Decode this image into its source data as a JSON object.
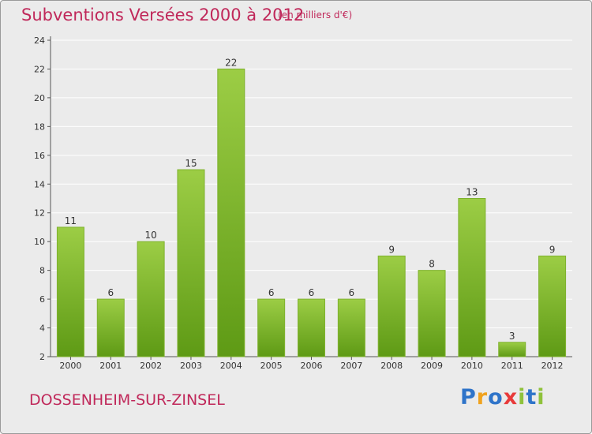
{
  "title": "Subventions Versées 2000 à 2012",
  "subtitle": "(en milliers d'€)",
  "commune": "DOSSENHEIM-SUR-ZINSEL",
  "logo": {
    "letters": [
      "P",
      "r",
      "o",
      "x",
      "i",
      "t",
      "i"
    ],
    "colors": [
      "#2f74c9",
      "#f0a21e",
      "#2f74c9",
      "#e83a3a",
      "#8fc23b",
      "#2f74c9",
      "#8fc23b"
    ]
  },
  "colors": {
    "bar_light": "#9ccd45",
    "bar_dark": "#5e9a15",
    "title": "#c0285a"
  },
  "chart_data": {
    "type": "bar",
    "categories": [
      "2000",
      "2001",
      "2002",
      "2003",
      "2004",
      "2005",
      "2006",
      "2007",
      "2008",
      "2009",
      "2010",
      "2011",
      "2012"
    ],
    "values": [
      11,
      6,
      10,
      15,
      22,
      6,
      6,
      6,
      9,
      8,
      13,
      3,
      9
    ],
    "ylim": [
      2,
      24
    ],
    "yticks": [
      2,
      4,
      6,
      8,
      10,
      12,
      14,
      16,
      18,
      20,
      22,
      24
    ],
    "grid": true
  }
}
